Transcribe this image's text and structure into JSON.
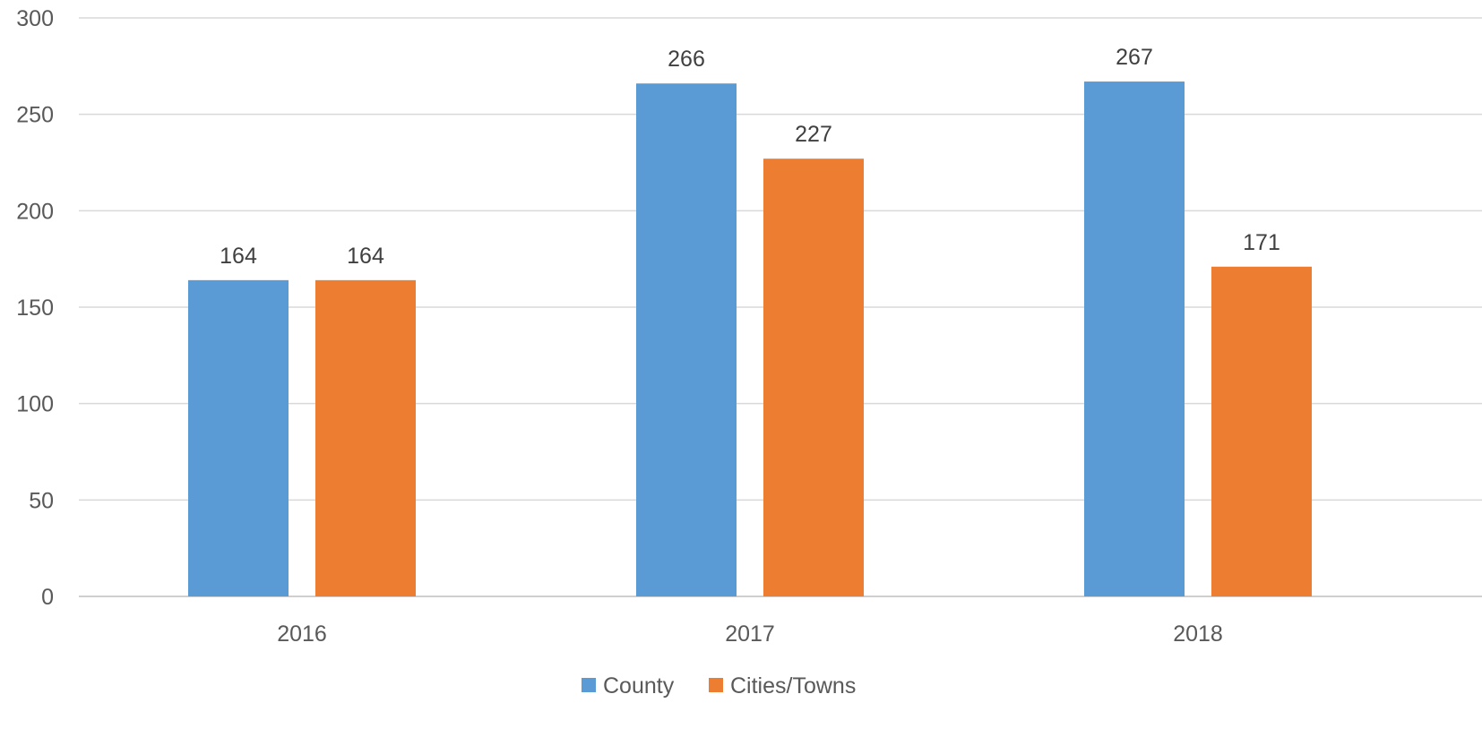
{
  "chart_data": {
    "type": "bar",
    "categories": [
      "2016",
      "2017",
      "2018"
    ],
    "series": [
      {
        "name": "County",
        "values": [
          164,
          266,
          267
        ],
        "color": "#5b9bd5"
      },
      {
        "name": "Cities/Towns",
        "values": [
          164,
          227,
          171
        ],
        "color": "#ed7d31"
      }
    ],
    "title": "",
    "xlabel": "",
    "ylabel": "",
    "ylim": [
      0,
      300
    ],
    "yticks": [
      0,
      50,
      100,
      150,
      200,
      250,
      300
    ],
    "grid": true,
    "legend_position": "bottom-center",
    "data_labels": true
  }
}
